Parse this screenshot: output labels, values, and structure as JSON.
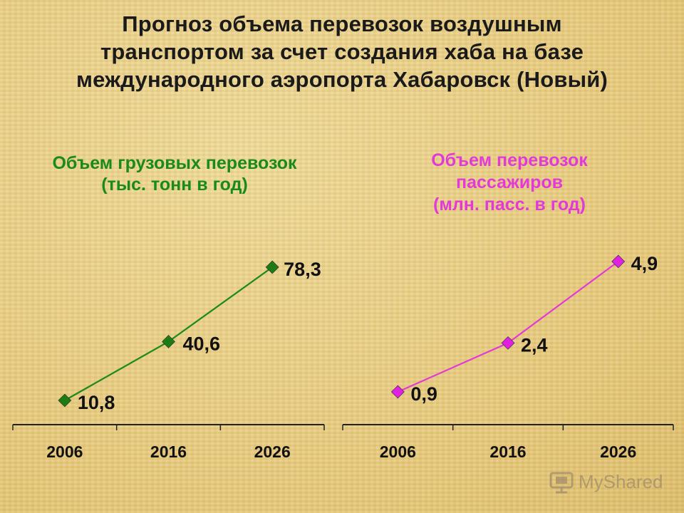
{
  "title": "Прогноз объема перевозок воздушным\nтранспортом за счет создания хаба на базе\nмеждународного аэропорта Хабаровск (Новый)",
  "watermark": "MyShared",
  "chart_data": [
    {
      "type": "line",
      "title": "Объем грузовых перевозок\n(тыс. тонн в год)",
      "categories": [
        "2006",
        "2016",
        "2026"
      ],
      "values": [
        10.8,
        40.6,
        78.3
      ],
      "labels": [
        "10,8",
        "40,6",
        "78,3"
      ],
      "ylim": [
        0,
        80
      ],
      "color": "#1a8a1a",
      "marker_color": "#1e7a12",
      "marker": "diamond",
      "grid": false
    },
    {
      "type": "line",
      "title": "Объем перевозок\nпассажиров\n(млн. пасс. в год)",
      "categories": [
        "2006",
        "2016",
        "2026"
      ],
      "values": [
        0.9,
        2.4,
        4.9
      ],
      "labels": [
        "0,9",
        "2,4",
        "4,9"
      ],
      "ylim": [
        0,
        5
      ],
      "color": "#e23ad8",
      "marker_color": "#e020e0",
      "marker": "diamond",
      "grid": false
    }
  ]
}
